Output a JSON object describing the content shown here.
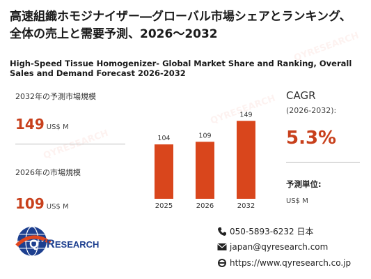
{
  "header": {
    "title_jp": "高速組織ホモジナイザー―グローバル市場シェアとランキング、全体の売上と需要予測、2026～2032",
    "title_en": "High-Speed Tissue Homogenizer- Global Market Share and Ranking, Overall Sales and Demand Forecast 2026-2032"
  },
  "stats": {
    "forecast_label": "2032年の予測市場規模",
    "forecast_value": "149",
    "forecast_unit": "US$ M",
    "current_label": "2026年の市場規模",
    "current_value": "109",
    "current_unit": "US$ M"
  },
  "cagr": {
    "title": "CAGR",
    "period": "(2026-2032):",
    "value": "5.3%",
    "unit_title": "予測単位:",
    "unit_value": "US$ M"
  },
  "chart_data": {
    "type": "bar",
    "categories": [
      "2025",
      "2026",
      "2032"
    ],
    "values": [
      104,
      109,
      149
    ],
    "title": "",
    "xlabel": "",
    "ylabel": "",
    "ylim": [
      0,
      160
    ],
    "bar_color": "#d9461c",
    "grid": false
  },
  "logo": {
    "text_q": "Q",
    "text_yr": "YR",
    "text_rest": "ESEARCH"
  },
  "contact": {
    "phone": "050-5893-6232 日本",
    "email": "japan@qyresearch.com",
    "website": "https://www.qyresearch.co.jp"
  },
  "colors": {
    "accent": "#c8401c",
    "logo_blue": "#1d3f8f"
  },
  "icons": [
    "phone-icon",
    "mail-icon",
    "web-icon",
    "globe-icon"
  ]
}
